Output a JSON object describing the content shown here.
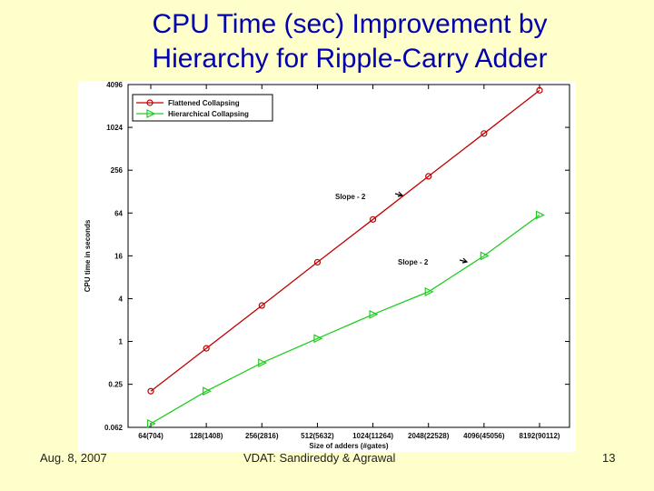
{
  "slide": {
    "title_line1": "CPU Time (sec) Improvement by",
    "title_line2": "Hierarchy for Ripple-Carry Adder",
    "footer_left": "Aug. 8, 2007",
    "footer_center": "VDAT: Sandireddy & Agrawal",
    "footer_right": "13"
  },
  "chart_data": {
    "type": "line",
    "xlabel": "Size of adders (#gates)",
    "ylabel": "CPU time in seconds",
    "categories": [
      "64(704)",
      "128(1408)",
      "256(2816)",
      "512(5632)",
      "1024(11264)",
      "2048(22528)",
      "4096(45056)",
      "8192(90112)"
    ],
    "y_scale": "log2",
    "ylim": [
      0.062,
      4096
    ],
    "y_ticks": [
      0.062,
      0.25,
      1,
      4,
      16,
      64,
      256,
      1024,
      4096
    ],
    "y_tick_labels": [
      "0.062",
      "0.25",
      "1",
      "4",
      "16",
      "64",
      "256",
      "1024",
      "4096"
    ],
    "series": [
      {
        "name": "Flattened Collapsing",
        "color": "#c00000",
        "marker": "circle",
        "values": [
          0.2,
          0.8,
          3.2,
          13,
          52,
          210,
          840,
          3400
        ]
      },
      {
        "name": "Hierarchical Collapsing",
        "color": "#22cc22",
        "marker": "triangle-right",
        "values": [
          0.07,
          0.2,
          0.5,
          1.1,
          2.4,
          5,
          16,
          60
        ]
      }
    ],
    "annotations": [
      {
        "text": "Slope - 2",
        "near_series": "Flattened Collapsing"
      },
      {
        "text": "Slope - 2",
        "near_series": "Hierarchical Collapsing"
      }
    ],
    "legend_position": "top-left",
    "grid": false
  }
}
